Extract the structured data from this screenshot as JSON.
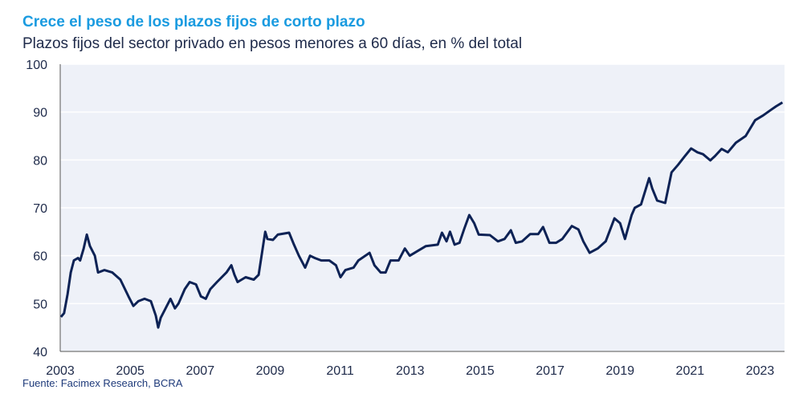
{
  "chart_data": {
    "type": "line",
    "title": "Crece el peso de los plazos fijos de corto plazo",
    "subtitle": "Plazos fijos del sector privado en pesos menores a 60 días, en % del total",
    "source": "Fuente: Facimex Research, BCRA",
    "xlabel": "",
    "ylabel": "",
    "xlim": [
      2003,
      2023.7
    ],
    "ylim": [
      40,
      100
    ],
    "yticks": [
      40,
      50,
      60,
      70,
      80,
      90,
      100
    ],
    "xticks": [
      2003,
      2005,
      2007,
      2009,
      2011,
      2013,
      2015,
      2017,
      2019,
      2021,
      2023
    ],
    "grid": true,
    "colors": {
      "line": "#0d2255",
      "title": "#1a9be0",
      "plot_bg": "#eef1f8"
    },
    "x": [
      2003.02,
      2003.11,
      2003.21,
      2003.3,
      2003.39,
      2003.51,
      2003.57,
      2003.67,
      2003.76,
      2003.85,
      2003.99,
      2004.08,
      2004.26,
      2004.49,
      2004.72,
      2004.95,
      2005.09,
      2005.23,
      2005.41,
      2005.59,
      2005.73,
      2005.8,
      2005.87,
      2006.01,
      2006.15,
      2006.28,
      2006.38,
      2006.56,
      2006.7,
      2006.88,
      2007.02,
      2007.16,
      2007.29,
      2007.48,
      2007.75,
      2007.89,
      2007.98,
      2008.07,
      2008.3,
      2008.53,
      2008.67,
      2008.86,
      2008.92,
      2009.08,
      2009.22,
      2009.54,
      2009.68,
      2009.82,
      2010.0,
      2010.14,
      2010.28,
      2010.46,
      2010.69,
      2010.88,
      2011.01,
      2011.15,
      2011.38,
      2011.52,
      2011.84,
      2011.98,
      2012.16,
      2012.3,
      2012.44,
      2012.67,
      2012.85,
      2012.99,
      2013.22,
      2013.45,
      2013.79,
      2013.91,
      2014.04,
      2014.14,
      2014.27,
      2014.41,
      2014.55,
      2014.69,
      2014.83,
      2014.96,
      2015.28,
      2015.51,
      2015.7,
      2015.88,
      2016.02,
      2016.2,
      2016.43,
      2016.66,
      2016.8,
      2016.98,
      2017.17,
      2017.35,
      2017.62,
      2017.81,
      2017.95,
      2018.13,
      2018.36,
      2018.59,
      2018.84,
      2019.0,
      2019.14,
      2019.33,
      2019.42,
      2019.6,
      2019.83,
      2019.92,
      2020.06,
      2020.29,
      2020.47,
      2020.66,
      2020.84,
      2021.03,
      2021.21,
      2021.37,
      2021.58,
      2021.71,
      2021.9,
      2022.08,
      2022.31,
      2022.59,
      2022.86,
      2023.09,
      2023.32,
      2023.46,
      2023.64
    ],
    "y": [
      47.2,
      48,
      52,
      56.5,
      59,
      59.5,
      59,
      61.5,
      64.4,
      62,
      60,
      56.5,
      57,
      56.5,
      55,
      51.5,
      49.5,
      50.5,
      51,
      50.5,
      47.5,
      45,
      47,
      49,
      51,
      49,
      50,
      53,
      54.5,
      54,
      51.5,
      51,
      53,
      54.5,
      56.5,
      58,
      56,
      54.5,
      55.5,
      55,
      56,
      65,
      63.5,
      63.3,
      64.4,
      64.8,
      62.3,
      60,
      57.5,
      60,
      59.5,
      59,
      59,
      58,
      55.5,
      57,
      57.5,
      59,
      60.6,
      58,
      56.5,
      56.5,
      59,
      59,
      61.5,
      60,
      61,
      62,
      62.3,
      64.8,
      63,
      65,
      62.3,
      62.7,
      65.7,
      68.5,
      66.8,
      64.4,
      64.3,
      63,
      63.5,
      65.3,
      62.7,
      63,
      64.5,
      64.5,
      66,
      62.7,
      62.7,
      63.5,
      66.2,
      65.5,
      63,
      60.6,
      61.5,
      63,
      67.8,
      66.8,
      63.5,
      68.5,
      70,
      70.7,
      76.2,
      74,
      71.5,
      71,
      77.4,
      79,
      80.7,
      82.4,
      81.6,
      81.2,
      79.9,
      80.8,
      82.3,
      81.6,
      83.6,
      85,
      88.3,
      89.3,
      90.5,
      91.2,
      92
    ]
  }
}
